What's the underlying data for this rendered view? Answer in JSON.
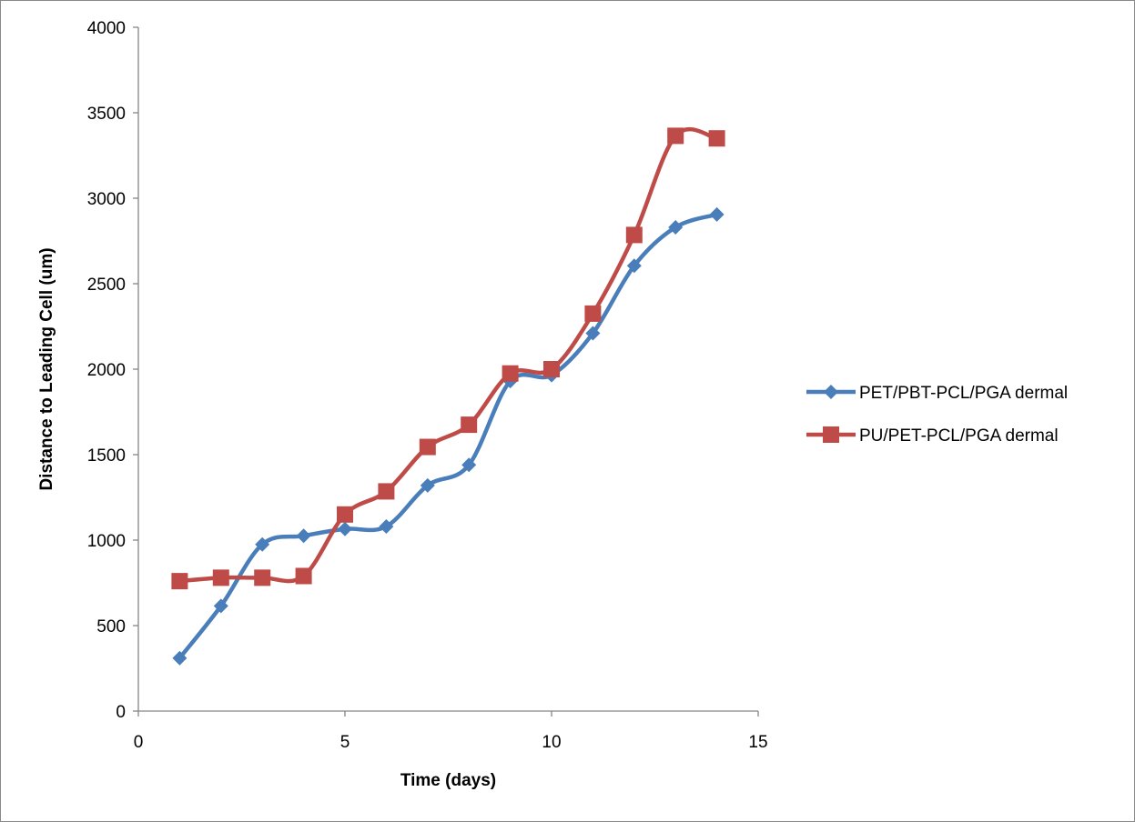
{
  "chart_data": {
    "type": "line",
    "title": "",
    "xlabel": "Time (days)",
    "ylabel": "Distance to Leading Cell (um)",
    "xlim": [
      0,
      15
    ],
    "ylim": [
      0,
      4000
    ],
    "xticks": [
      0,
      5,
      10,
      15
    ],
    "yticks": [
      0,
      500,
      1000,
      1500,
      2000,
      2500,
      3000,
      3500,
      4000
    ],
    "grid": false,
    "legend_position": "right",
    "smooth": true,
    "series": [
      {
        "name": "PET/PBT-PCL/PGA dermal",
        "color": "#4A7EBB",
        "marker": "diamond",
        "x": [
          1,
          2,
          3,
          4,
          5,
          6,
          7,
          8,
          9,
          10,
          11,
          12,
          13,
          14
        ],
        "y": [
          310,
          615,
          975,
          1025,
          1065,
          1080,
          1320,
          1440,
          1930,
          1965,
          2210,
          2605,
          2830,
          2905
        ]
      },
      {
        "name": "PU/PET-PCL/PGA dermal",
        "color": "#BE4B48",
        "marker": "square",
        "x": [
          1,
          2,
          3,
          4,
          5,
          6,
          7,
          8,
          9,
          10,
          11,
          12,
          13,
          14
        ],
        "y": [
          760,
          780,
          780,
          790,
          1150,
          1285,
          1545,
          1675,
          1975,
          2000,
          2325,
          2785,
          3365,
          3350
        ]
      }
    ]
  }
}
